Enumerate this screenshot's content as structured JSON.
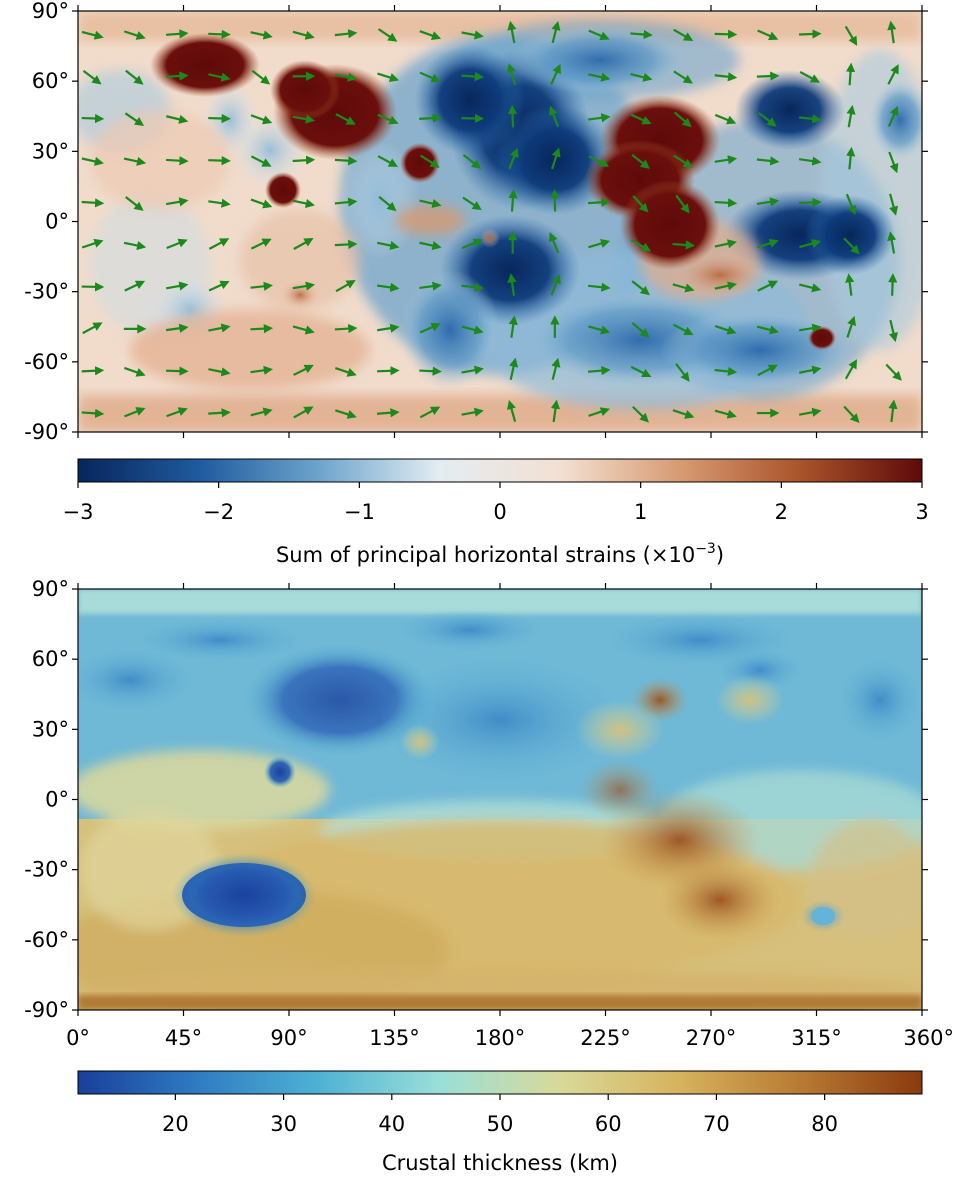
{
  "top_map": {
    "lat_ticks": [
      "90°",
      "60°",
      "30°",
      "0°",
      "-30°",
      "-60°",
      "-90°"
    ],
    "lat_values": [
      90,
      60,
      30,
      0,
      -30,
      -60,
      -90
    ],
    "lon_values": [
      0,
      45,
      90,
      135,
      180,
      225,
      270,
      315,
      360
    ],
    "arrow_color": "#1b8a1b",
    "colorbar": {
      "label": "Sum of principal horizontal strains (×10",
      "label_exp": "−3",
      "label_close": ")",
      "ticks": [
        "−3",
        "−2",
        "−1",
        "0",
        "1",
        "2",
        "3"
      ],
      "values": [
        -3,
        -2,
        -1,
        0,
        1,
        2,
        3
      ],
      "colormap": [
        "#07265c",
        "#1f5a9e",
        "#6da4cc",
        "#e3edf2",
        "#f3e0d2",
        "#d79a72",
        "#a9532a",
        "#5e0a0a"
      ]
    }
  },
  "bottom_map": {
    "lat_ticks": [
      "90°",
      "60°",
      "30°",
      "0°",
      "-30°",
      "-60°",
      "-90°"
    ],
    "lat_values": [
      90,
      60,
      30,
      0,
      -30,
      -60,
      -90
    ],
    "lon_ticks": [
      "0°",
      "45°",
      "90°",
      "135°",
      "180°",
      "225°",
      "270°",
      "315°",
      "360°"
    ],
    "lon_values": [
      0,
      45,
      90,
      135,
      180,
      225,
      270,
      315,
      360
    ],
    "colorbar": {
      "label": "Crustal thickness (km)",
      "ticks": [
        "20",
        "30",
        "40",
        "50",
        "60",
        "70",
        "80"
      ],
      "values": [
        20,
        30,
        40,
        50,
        60,
        70,
        80
      ],
      "min": 11,
      "max": 89,
      "colormap": [
        "#1a3f9c",
        "#2f7cc2",
        "#4fb2d4",
        "#9adfd8",
        "#d9d99a",
        "#d6b25c",
        "#b87a33",
        "#8a3a0f"
      ]
    }
  }
}
